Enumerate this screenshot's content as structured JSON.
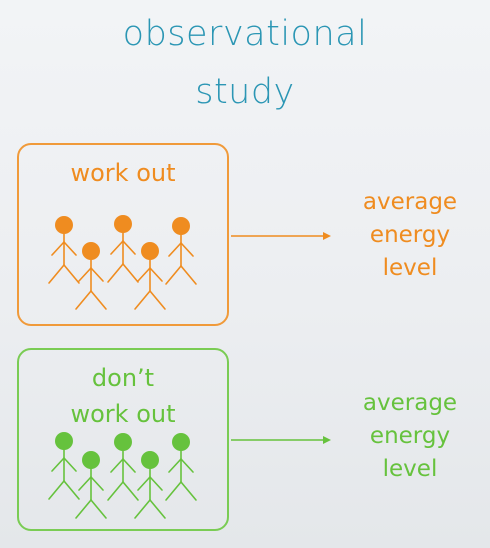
{
  "title": {
    "line1": "observational",
    "line2": "study"
  },
  "groups": [
    {
      "id": "work",
      "label_lines": [
        "work out"
      ],
      "color": "#ef8c20",
      "figure_count": 5,
      "outcome_lines": [
        "average",
        "energy",
        "level"
      ]
    },
    {
      "id": "nowork",
      "label_lines": [
        "don’t",
        "work out"
      ],
      "color": "#66c23d",
      "figure_count": 5,
      "outcome_lines": [
        "average",
        "energy",
        "level"
      ]
    }
  ],
  "colors": {
    "title": "#2b96b4",
    "orange_border": "#f09a3a",
    "green_border": "#7acc54"
  },
  "icons": {
    "person": "stick-figure-icon",
    "arrow": "arrow-right-icon"
  }
}
